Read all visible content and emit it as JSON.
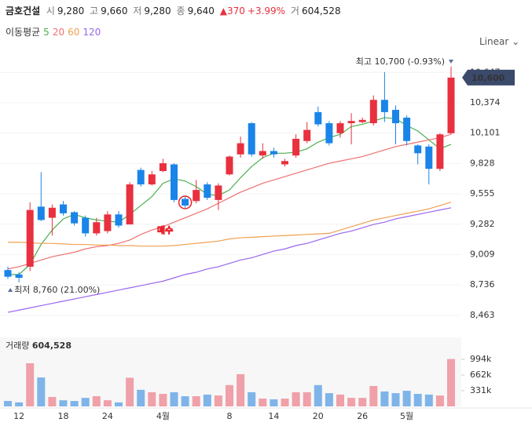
{
  "header": {
    "name": "금호건설",
    "quotes": [
      [
        "시",
        "9,280"
      ],
      [
        "고",
        "9,660"
      ],
      [
        "저",
        "9,280"
      ],
      [
        "종",
        "9,640"
      ]
    ],
    "change": "▲370",
    "change_rate": "+3.99%",
    "volume_label": "거",
    "volume": "604,528"
  },
  "chart_data": [
    {
      "type": "candlestick",
      "legend_title": "이동평균",
      "scale_label": "Linear",
      "categories": [
        null,
        "12",
        null,
        null,
        null,
        "18",
        null,
        null,
        null,
        "24",
        null,
        null,
        null,
        null,
        "4월",
        null,
        null,
        null,
        null,
        null,
        "8",
        null,
        null,
        null,
        "14",
        null,
        null,
        null,
        "20",
        null,
        null,
        null,
        "26",
        null,
        null,
        null,
        "5월",
        null,
        null,
        null,
        null
      ],
      "open": [
        8870,
        8830,
        8900,
        9440,
        9340,
        9460,
        9390,
        9340,
        9200,
        9220,
        9370,
        9280,
        9770,
        9640,
        9760,
        9820,
        9510,
        9490,
        9640,
        9500,
        9730,
        9910,
        10190,
        9900,
        9940,
        9820,
        9900,
        10030,
        10290,
        10190,
        10100,
        10190,
        10200,
        10190,
        10400,
        10310,
        10240,
        9990,
        9980,
        9780,
        10100
      ],
      "high": [
        8900,
        8850,
        9480,
        9750,
        9460,
        9490,
        9400,
        9360,
        9340,
        9400,
        9400,
        9660,
        9790,
        9760,
        9870,
        9830,
        9530,
        9680,
        9660,
        9650,
        9900,
        10070,
        10200,
        10010,
        9970,
        9870,
        10090,
        10200,
        10340,
        10210,
        10210,
        10280,
        10240,
        10440,
        10650,
        10350,
        10260,
        10000,
        10000,
        10100,
        10700
      ],
      "low": [
        8790,
        8760,
        8860,
        9310,
        9180,
        9360,
        9270,
        9170,
        9180,
        9200,
        9250,
        9280,
        9620,
        9630,
        9750,
        9480,
        9430,
        9470,
        9500,
        9410,
        9720,
        9880,
        9890,
        9870,
        9880,
        9800,
        9880,
        10010,
        10160,
        9990,
        10060,
        10000,
        10190,
        10170,
        10200,
        10000,
        9990,
        9820,
        9640,
        9760,
        10090
      ],
      "close": [
        8810,
        8800,
        9410,
        9320,
        9430,
        9380,
        9290,
        9200,
        9300,
        9370,
        9270,
        9640,
        9640,
        9730,
        9830,
        9500,
        9450,
        9590,
        9520,
        9630,
        9890,
        10010,
        9910,
        9940,
        9910,
        9850,
        10050,
        10130,
        10180,
        10010,
        10190,
        10210,
        10220,
        10400,
        10290,
        10190,
        10030,
        9920,
        9780,
        10090,
        10600
      ],
      "up_color": "#e8303f",
      "down_color": "#1a84e8",
      "series": [
        {
          "name": "5",
          "color": "#4caf50",
          "values": [
            8830,
            8830,
            8920,
            9100,
            9230,
            9330,
            9370,
            9340,
            9320,
            9310,
            9300,
            9370,
            9450,
            9530,
            9650,
            9690,
            9670,
            9620,
            9550,
            9540,
            9590,
            9700,
            9800,
            9880,
            9920,
            9920,
            9930,
            9960,
            10020,
            10060,
            10090,
            10160,
            10180,
            10210,
            10240,
            10230,
            10170,
            10120,
            10040,
            9960,
            10000
          ]
        },
        {
          "name": "20",
          "color": "#f07070",
          "values": [
            8880,
            8900,
            8930,
            8960,
            8990,
            9010,
            9030,
            9060,
            9080,
            9090,
            9110,
            9140,
            9190,
            9230,
            9260,
            9300,
            9340,
            9380,
            9420,
            9470,
            9520,
            9570,
            9610,
            9650,
            9680,
            9710,
            9740,
            9770,
            9800,
            9830,
            9850,
            9870,
            9890,
            9920,
            9950,
            9980,
            10000,
            10020,
            10040,
            10060,
            10090
          ]
        },
        {
          "name": "60",
          "color": "#f0a050",
          "values": [
            9120,
            9120,
            9115,
            9110,
            9110,
            9105,
            9100,
            9100,
            9095,
            9095,
            9090,
            9090,
            9085,
            9085,
            9085,
            9090,
            9100,
            9110,
            9120,
            9130,
            9150,
            9160,
            9165,
            9170,
            9175,
            9180,
            9185,
            9190,
            9195,
            9200,
            9230,
            9260,
            9290,
            9320,
            9340,
            9360,
            9380,
            9400,
            9420,
            9450,
            9480
          ]
        },
        {
          "name": "120",
          "color": "#9966ee",
          "values": [
            8490,
            8510,
            8530,
            8550,
            8570,
            8590,
            8610,
            8630,
            8650,
            8670,
            8690,
            8710,
            8730,
            8750,
            8770,
            8800,
            8830,
            8850,
            8880,
            8900,
            8930,
            8960,
            8980,
            9010,
            9040,
            9060,
            9090,
            9110,
            9140,
            9170,
            9200,
            9220,
            9250,
            9280,
            9300,
            9330,
            9350,
            9370,
            9390,
            9410,
            9430
          ]
        }
      ],
      "ylim": [
        8300,
        10804
      ],
      "yticks": [
        {
          "value": 8463,
          "label": "8,463"
        },
        {
          "value": 8736,
          "label": "8,736"
        },
        {
          "value": 9009,
          "label": "9,009"
        },
        {
          "value": 9282,
          "label": "9,282"
        },
        {
          "value": 9555,
          "label": "9,555"
        },
        {
          "value": 9828,
          "label": "9,828"
        },
        {
          "value": 10101,
          "label": "10,101"
        },
        {
          "value": 10374,
          "label": "10,374"
        },
        {
          "value": 10647,
          "label": "10,647"
        }
      ],
      "grid": true,
      "last_price": {
        "value": 10600,
        "label": "10,600"
      },
      "max_label": "최고 10,700 (-0.93%)",
      "min_label": "최저 8,760 (21.00%)",
      "annotation": "매수"
    },
    {
      "type": "bar",
      "title": "거래량",
      "title_value": "604,528",
      "color_up": "#f0a0a8",
      "color_down": "#7fb4e8",
      "values": [
        115000,
        85000,
        910000,
        610000,
        200000,
        130000,
        115000,
        180000,
        215000,
        130000,
        85000,
        604528,
        350000,
        300000,
        265000,
        300000,
        215000,
        215000,
        250000,
        230000,
        450000,
        680000,
        300000,
        165000,
        150000,
        165000,
        300000,
        300000,
        450000,
        280000,
        250000,
        180000,
        180000,
        430000,
        315000,
        280000,
        330000,
        265000,
        250000,
        230000,
        1000000
      ],
      "ylim": [
        0,
        1456000
      ],
      "yticks": [
        {
          "value": 331000,
          "label": "331k"
        },
        {
          "value": 662000,
          "label": "662k"
        },
        {
          "value": 994000,
          "label": "994k"
        }
      ]
    }
  ]
}
